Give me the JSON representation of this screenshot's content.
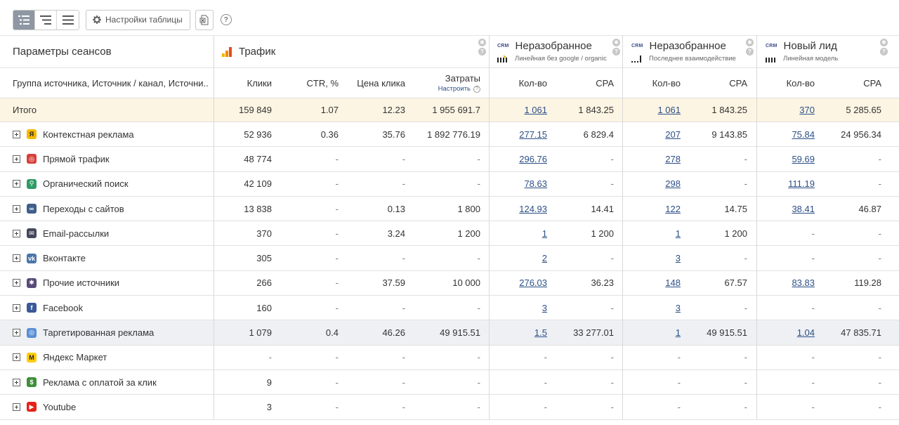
{
  "toolbar": {
    "settings_label": "Настройки таблицы",
    "help_label": "?"
  },
  "header": {
    "params_title": "Параметры сеансов",
    "traffic_title": "Трафик",
    "groups": [
      {
        "crm": "CRM",
        "title": "Неразобранное",
        "subtitle": "Линейная без google / organic"
      },
      {
        "crm": "CRM",
        "title": "Неразобранное",
        "subtitle": "Последнее взаимодействие"
      },
      {
        "crm": "CRM",
        "title": "Новый лид",
        "subtitle": "Линейная модель"
      }
    ]
  },
  "columns": {
    "dims": "Группа источника, Источник / канал, Источни...",
    "clicks": "Клики",
    "ctr": "CTR, %",
    "cpc": "Цена клика",
    "cost": "Затраты",
    "cost_sub": "Настроить",
    "g1_count": "Кол-во",
    "g1_cpa": "CPA",
    "g2_count": "Кол-во",
    "g2_cpa": "CPA",
    "g3_count": "Кол-во",
    "g3_cpa": "CPA"
  },
  "total": {
    "label": "Итого",
    "clicks": "159 849",
    "ctr": "1.07",
    "cpc": "12.23",
    "cost": "1 955 691.7",
    "g1_count": "1 061",
    "g1_cpa": "1 843.25",
    "g2_count": "1 061",
    "g2_cpa": "1 843.25",
    "g3_count": "370",
    "g3_cpa": "5 285.65"
  },
  "rows": [
    {
      "label": "Контекстная реклама",
      "icon": "yandex-direct-icon",
      "icon_color": "#f5b800",
      "icon_glyph": "Я",
      "clicks": "52 936",
      "ctr": "0.36",
      "cpc": "35.76",
      "cost": "1 892 776.19",
      "g1_count": "277.15",
      "g1_cpa": "6 829.4",
      "g2_count": "207",
      "g2_cpa": "9 143.85",
      "g3_count": "75.84",
      "g3_cpa": "24 956.34"
    },
    {
      "label": "Прямой трафик",
      "icon": "direct-traffic-icon",
      "icon_color": "#d6403a",
      "icon_glyph": "◎",
      "clicks": "48 774",
      "ctr": "-",
      "cpc": "-",
      "cost": "-",
      "g1_count": "296.76",
      "g1_cpa": "-",
      "g2_count": "278",
      "g2_cpa": "-",
      "g3_count": "59.69",
      "g3_cpa": "-"
    },
    {
      "label": "Органический поиск",
      "icon": "search-icon",
      "icon_color": "#2e9d63",
      "icon_glyph": "⚲",
      "clicks": "42 109",
      "ctr": "-",
      "cpc": "-",
      "cost": "-",
      "g1_count": "78.63",
      "g1_cpa": "-",
      "g2_count": "298",
      "g2_cpa": "-",
      "g3_count": "111.19",
      "g3_cpa": "-"
    },
    {
      "label": "Переходы с сайтов",
      "icon": "link-icon",
      "icon_color": "#3e5f8a",
      "icon_glyph": "∞",
      "clicks": "13 838",
      "ctr": "-",
      "cpc": "0.13",
      "cost": "1 800",
      "g1_count": "124.93",
      "g1_cpa": "14.41",
      "g2_count": "122",
      "g2_cpa": "14.75",
      "g3_count": "38.41",
      "g3_cpa": "46.87"
    },
    {
      "label": "Email-рассылки",
      "icon": "email-icon",
      "icon_color": "#44485a",
      "icon_glyph": "✉",
      "clicks": "370",
      "ctr": "-",
      "cpc": "3.24",
      "cost": "1 200",
      "g1_count": "1",
      "g1_cpa": "1 200",
      "g2_count": "1",
      "g2_cpa": "1 200",
      "g3_count": "-",
      "g3_cpa": "-"
    },
    {
      "label": "Вконтакте",
      "icon": "vk-icon",
      "icon_color": "#4a76a8",
      "icon_glyph": "vk",
      "clicks": "305",
      "ctr": "-",
      "cpc": "-",
      "cost": "-",
      "g1_count": "2",
      "g1_cpa": "-",
      "g2_count": "3",
      "g2_cpa": "-",
      "g3_count": "-",
      "g3_cpa": "-"
    },
    {
      "label": "Прочие источники",
      "icon": "other-sources-icon",
      "icon_color": "#5a4a7a",
      "icon_glyph": "✱",
      "clicks": "266",
      "ctr": "-",
      "cpc": "37.59",
      "cost": "10 000",
      "g1_count": "276.03",
      "g1_cpa": "36.23",
      "g2_count": "148",
      "g2_cpa": "67.57",
      "g3_count": "83.83",
      "g3_cpa": "119.28"
    },
    {
      "label": "Facebook",
      "icon": "facebook-icon",
      "icon_color": "#3b5998",
      "icon_glyph": "f",
      "clicks": "160",
      "ctr": "-",
      "cpc": "-",
      "cost": "-",
      "g1_count": "3",
      "g1_cpa": "-",
      "g2_count": "3",
      "g2_cpa": "-",
      "g3_count": "-",
      "g3_cpa": "-"
    },
    {
      "label": "Таргетированная реклама",
      "icon": "target-icon",
      "icon_color": "#5b8fd6",
      "icon_glyph": "◎",
      "clicks": "1 079",
      "ctr": "0.4",
      "cpc": "46.26",
      "cost": "49 915.51",
      "g1_count": "1.5",
      "g1_cpa": "33 277.01",
      "g2_count": "1",
      "g2_cpa": "49 915.51",
      "g3_count": "1.04",
      "g3_cpa": "47 835.71"
    },
    {
      "label": "Яндекс Маркет",
      "icon": "yandex-market-icon",
      "icon_color": "#ffcc00",
      "icon_glyph": "M",
      "clicks": "-",
      "ctr": "-",
      "cpc": "-",
      "cost": "-",
      "g1_count": "-",
      "g1_cpa": "-",
      "g2_count": "-",
      "g2_cpa": "-",
      "g3_count": "-",
      "g3_cpa": "-"
    },
    {
      "label": "Реклама с оплатой за клик",
      "icon": "cpc-ads-icon",
      "icon_color": "#3f8f3a",
      "icon_glyph": "$",
      "clicks": "9",
      "ctr": "-",
      "cpc": "-",
      "cost": "-",
      "g1_count": "-",
      "g1_cpa": "-",
      "g2_count": "-",
      "g2_cpa": "-",
      "g3_count": "-",
      "g3_cpa": "-"
    },
    {
      "label": "Youtube",
      "icon": "youtube-icon",
      "icon_color": "#e62117",
      "icon_glyph": "▶",
      "clicks": "3",
      "ctr": "-",
      "cpc": "-",
      "cost": "-",
      "g1_count": "-",
      "g1_cpa": "-",
      "g2_count": "-",
      "g2_cpa": "-",
      "g3_count": "-",
      "g3_cpa": "-"
    }
  ]
}
